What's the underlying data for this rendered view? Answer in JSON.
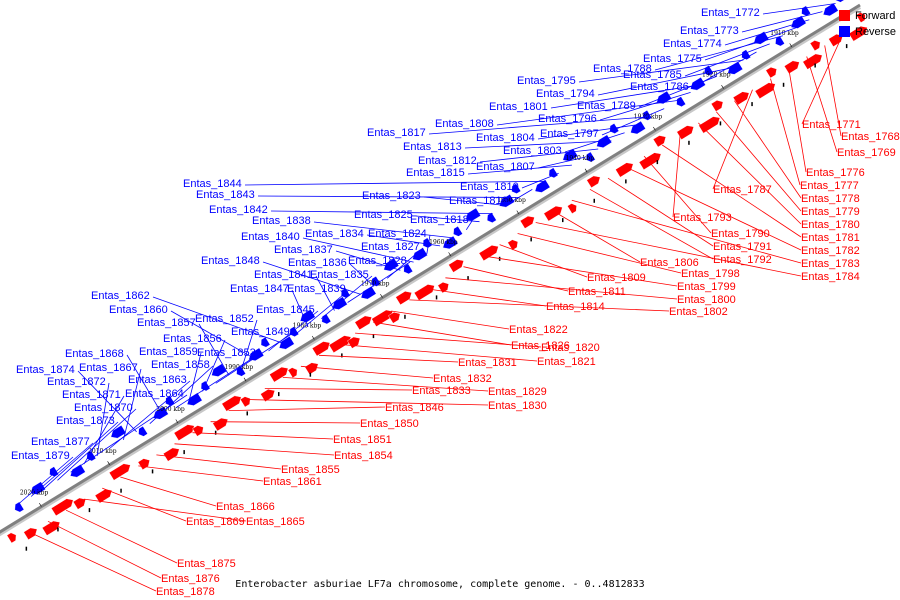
{
  "caption": "Enterobacter asburiae LF7a chromosome, complete genome. - 0..4812833",
  "legend": {
    "forward": "Forward",
    "reverse": "Reverse"
  },
  "colors": {
    "forward": "#ff0000",
    "reverse": "#0000ff",
    "backbone": "#808080"
  },
  "ticks": [
    "1910 kbp",
    "1920 kbp",
    "1930 kbp",
    "1940 kbp",
    "1950 kbp",
    "1960 kbp",
    "1970 kbp",
    "1980 kbp",
    "1990 kbp",
    "2000 kbp",
    "2010 kbp",
    "2020 kbp",
    "2030 kbp"
  ],
  "reverse_genes": [
    "Entas_1772",
    "Entas_1773",
    "Entas_1774",
    "Entas_1775",
    "Entas_1788",
    "Entas_1785",
    "Entas_1786",
    "Entas_1795",
    "Entas_1794",
    "Entas_1789",
    "Entas_1801",
    "Entas_1796",
    "Entas_1808",
    "Entas_1797",
    "Entas_1817",
    "Entas_1804",
    "Entas_1803",
    "Entas_1813",
    "Entas_1812",
    "Entas_1807",
    "Entas_1815",
    "Entas_1810",
    "Entas_1844",
    "Entas_1816",
    "Entas_1843",
    "Entas_1823",
    "Entas_1842",
    "Entas_1825",
    "Entas_1818",
    "Entas_1838",
    "Entas_1834",
    "Entas_1824",
    "Entas_1840",
    "Entas_1837",
    "Entas_1827",
    "Entas_1836",
    "Entas_1848",
    "Entas_1828",
    "Entas_1841",
    "Entas_1835",
    "Entas_1847",
    "Entas_1839",
    "Entas_1862",
    "Entas_1845",
    "Entas_1860",
    "Entas_1852",
    "Entas_1857",
    "Entas_1849",
    "Entas_1856",
    "Entas_1859",
    "Entas_1853",
    "Entas_1868",
    "Entas_1858",
    "Entas_1874",
    "Entas_1867",
    "Entas_1863",
    "Entas_1872",
    "Entas_1871",
    "Entas_1864",
    "Entas_1870",
    "Entas_1873",
    "Entas_1877",
    "Entas_1879"
  ],
  "forward_genes": [
    "Entas_1771",
    "Entas_1768",
    "Entas_1769",
    "Entas_1776",
    "Entas_1777",
    "Entas_1787",
    "Entas_1778",
    "Entas_1779",
    "Entas_1780",
    "Entas_1793",
    "Entas_1781",
    "Entas_1790",
    "Entas_1782",
    "Entas_1791",
    "Entas_1792",
    "Entas_1783",
    "Entas_1806",
    "Entas_1784",
    "Entas_1798",
    "Entas_1809",
    "Entas_1799",
    "Entas_1811",
    "Entas_1800",
    "Entas_1814",
    "Entas_1802",
    "Entas_1822",
    "Entas_1826",
    "Entas_1820",
    "Entas_1821",
    "Entas_1831",
    "Entas_1832",
    "Entas_1829",
    "Entas_1833",
    "Entas_1830",
    "Entas_1846",
    "Entas_1850",
    "Entas_1851",
    "Entas_1854",
    "Entas_1855",
    "Entas_1861",
    "Entas_1866",
    "Entas_1869",
    "Entas_1865",
    "Entas_1875",
    "Entas_1876",
    "Entas_1878"
  ]
}
